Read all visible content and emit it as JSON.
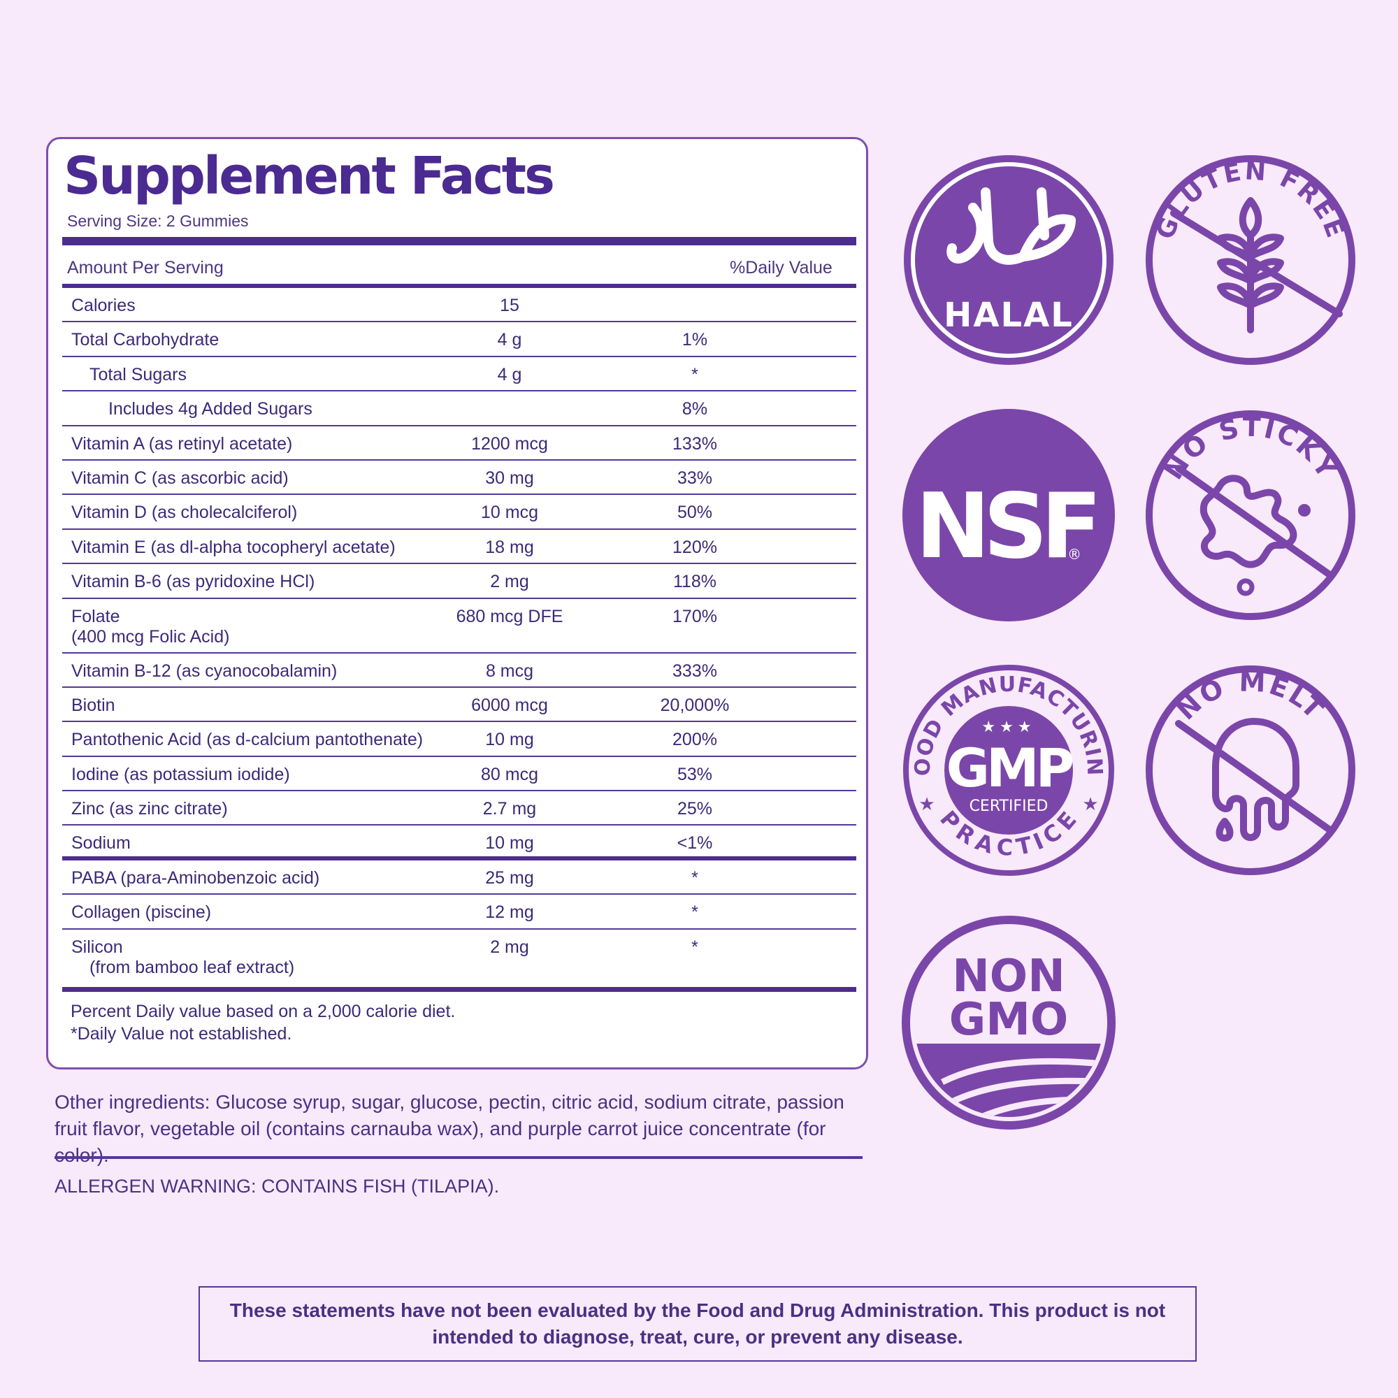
{
  "facts": {
    "title": "Supplement Facts",
    "serving_size": "Serving Size: 2 Gummies",
    "header_amount": "Amount Per Serving",
    "header_dv": "%Daily Value",
    "rows": [
      {
        "name": "Calories",
        "amount": "15",
        "dv": ""
      },
      {
        "name": "Total Carbohydrate",
        "amount": "4 g",
        "dv": "1%"
      },
      {
        "name": "Total Sugars",
        "amount": "4 g",
        "dv": "*"
      },
      {
        "name": "Includes 4g Added Sugars",
        "amount": "",
        "dv": "8%"
      },
      {
        "name": "Vitamin A (as retinyl acetate)",
        "amount": "1200 mcg",
        "dv": "133%"
      },
      {
        "name": "Vitamin C (as ascorbic acid)",
        "amount": "30 mg",
        "dv": "33%"
      },
      {
        "name": "Vitamin D (as cholecalciferol)",
        "amount": "10 mcg",
        "dv": "50%"
      },
      {
        "name": "Vitamin E (as dl-alpha tocopheryl acetate)",
        "amount": "18 mg",
        "dv": "120%"
      },
      {
        "name": "Vitamin B-6 (as pyridoxine HCl)",
        "amount": "2 mg",
        "dv": "118%"
      },
      {
        "name": "Folate",
        "name2": "(400 mcg Folic Acid)",
        "amount": "680 mcg DFE",
        "dv": "170%"
      },
      {
        "name": "Vitamin B-12 (as cyanocobalamin)",
        "amount": "8 mcg",
        "dv": "333%"
      },
      {
        "name": "Biotin",
        "amount": "6000 mcg",
        "dv": "20,000%"
      },
      {
        "name": "Pantothenic Acid (as d-calcium pantothenate)",
        "amount": "10 mg",
        "dv": "200%"
      },
      {
        "name": "Iodine (as potassium iodide)",
        "amount": "80 mcg",
        "dv": "53%"
      },
      {
        "name": "Zinc (as zinc citrate)",
        "amount": "2.7 mg",
        "dv": "25%"
      },
      {
        "name": "Sodium",
        "amount": "10 mg",
        "dv": "<1%"
      },
      {
        "name": "PABA (para-Aminobenzoic acid)",
        "amount": "25 mg",
        "dv": "*"
      },
      {
        "name": "Collagen (piscine)",
        "amount": "12 mg",
        "dv": "*"
      },
      {
        "name": "Silicon",
        "name2": "(from bamboo leaf extract)",
        "amount": "2 mg",
        "dv": "*"
      }
    ],
    "footnote_1": "Percent Daily value based on a 2,000 calorie diet.",
    "footnote_2": "*Daily Value not established."
  },
  "ingredients": "Other ingredients: Glucose syrup, sugar, glucose, pectin, citric acid, sodium citrate, passion fruit flavor, vegetable oil (contains carnauba wax), and purple carrot juice concentrate (for color).",
  "allergen": "ALLERGEN WARNING: CONTAINS FISH (TILAPIA).",
  "disclaimer": "These statements have not been evaluated by the Food and Drug Administration. This product is not intended to diagnose, treat, cure, or prevent any disease.",
  "badges": {
    "halal": {
      "text": "HALAL",
      "icon": "halal-arabic-glyph"
    },
    "gluten_free": {
      "text": "GLUTEN FREE",
      "icon": "wheat-icon"
    },
    "nsf": {
      "text": "NSF",
      "mark": "®"
    },
    "no_sticky": {
      "text": "NO STICKY",
      "icon": "splat-icon"
    },
    "gmp": {
      "top": "GOOD MANUFACTURING",
      "bottom": "PRACTICE",
      "main": "GMP",
      "sub": "CERTIFIED"
    },
    "no_melt": {
      "text": "NO MELT",
      "icon": "melting-icon"
    },
    "non_gmo": {
      "line1": "NON",
      "line2": "GMO",
      "icon": "field-icon"
    }
  },
  "colors": {
    "background": "#f8e9fb",
    "brand_purple": "#7b46a9",
    "text": "#4a2e86"
  }
}
